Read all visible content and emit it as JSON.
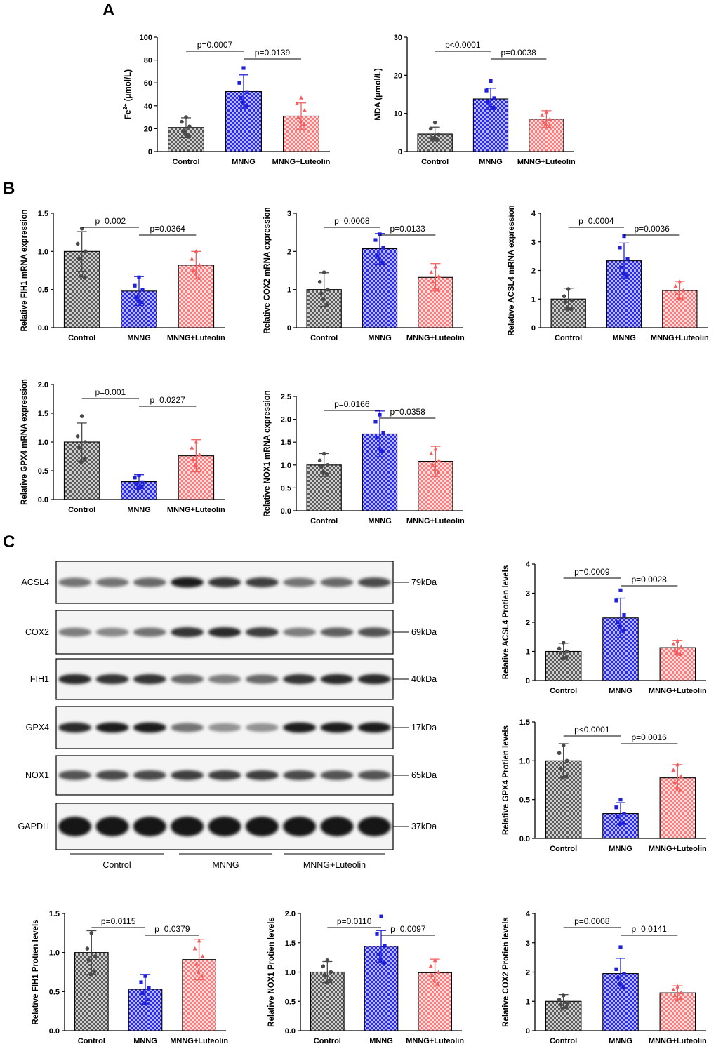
{
  "panels": {
    "a": "A",
    "b": "B",
    "c": "C"
  },
  "colors": {
    "control": "#4a4a4a",
    "mnng": "#2020d8",
    "luteolin": "#f06060",
    "control_fill": "#8a8a8a",
    "mnng_fill": "#3b3bff",
    "luteolin_fill": "#ff7a7a"
  },
  "chart_data": [
    {
      "id": "fe2",
      "type": "bar",
      "categories": [
        "Control",
        "MNNG",
        "MNNG+Luteolin"
      ],
      "values": [
        21,
        52.5,
        31
      ],
      "errors": [
        8.5,
        14.5,
        11.5
      ],
      "points": [
        [
          30,
          26,
          22,
          18,
          14,
          15
        ],
        [
          73,
          60,
          52,
          47,
          40,
          43
        ],
        [
          47,
          42,
          36,
          30,
          24,
          26
        ]
      ],
      "ylabel_main": "Fe",
      "ylabel_sup": "2+",
      "ylabel_unit": " (μmol/L)",
      "ylim": [
        0,
        100
      ],
      "yticks": [
        "0",
        "20",
        "40",
        "60",
        "80",
        "100"
      ],
      "comparisons": [
        {
          "from": 0,
          "to": 1,
          "label": "p=0.0007",
          "level": 0
        },
        {
          "from": 1,
          "to": 2,
          "label": "p=0.0139",
          "level": 1
        }
      ]
    },
    {
      "id": "mda",
      "type": "bar",
      "categories": [
        "Control",
        "MNNG",
        "MNNG+Luteolin"
      ],
      "values": [
        4.6,
        13.8,
        8.5
      ],
      "errors": [
        1.8,
        2.8,
        2.2
      ],
      "points": [
        [
          7.6,
          6,
          4.5,
          3.5,
          3.2,
          3.6
        ],
        [
          18.5,
          16,
          14,
          13,
          11.5,
          12
        ],
        [
          10.4,
          9.5,
          8.5,
          7.7,
          6.7,
          7.2
        ]
      ],
      "ylabel_main": "MDA (μmol/L)",
      "ylim": [
        0,
        30
      ],
      "yticks": [
        "0",
        "10",
        "20",
        "30"
      ],
      "comparisons": [
        {
          "from": 0,
          "to": 1,
          "label": "p<0.0001",
          "level": 0
        },
        {
          "from": 1,
          "to": 2,
          "label": "p=0.0038",
          "level": 1
        }
      ]
    },
    {
      "id": "fih1_mrna",
      "type": "bar",
      "categories": [
        "Control",
        "MNNG",
        "MNNG+Luteolin"
      ],
      "values": [
        1.0,
        0.48,
        0.82
      ],
      "errors": [
        0.26,
        0.19,
        0.18
      ],
      "points": [
        [
          1.3,
          1.1,
          1.0,
          0.9,
          0.65,
          0.68
        ],
        [
          0.66,
          0.55,
          0.5,
          0.4,
          0.33,
          0.35
        ],
        [
          1.0,
          0.9,
          0.82,
          0.75,
          0.65,
          0.7
        ]
      ],
      "ylabel_main": "Relative FIH1 mRNA expression",
      "ylim": [
        0,
        1.5
      ],
      "yticks": [
        "0.0",
        "0.5",
        "1.0",
        "1.5"
      ],
      "comparisons": [
        {
          "from": 0,
          "to": 1,
          "label": "p=0.002",
          "level": 0
        },
        {
          "from": 1,
          "to": 2,
          "label": "p=0.0364",
          "level": 1
        }
      ]
    },
    {
      "id": "cox2_mrna",
      "type": "bar",
      "categories": [
        "Control",
        "MNNG",
        "MNNG+Luteolin"
      ],
      "values": [
        1.0,
        2.07,
        1.32
      ],
      "errors": [
        0.44,
        0.4,
        0.36
      ],
      "points": [
        [
          1.45,
          1.2,
          1.0,
          0.9,
          0.6,
          0.75
        ],
        [
          2.45,
          2.3,
          2.1,
          1.9,
          1.7,
          1.8
        ],
        [
          1.6,
          1.45,
          1.35,
          1.2,
          1.0,
          1.05
        ]
      ],
      "ylabel_main": "Relative COX2 mRNA expression",
      "ylim": [
        0,
        3
      ],
      "yticks": [
        "0",
        "1",
        "2",
        "3"
      ],
      "comparisons": [
        {
          "from": 0,
          "to": 1,
          "label": "p=0.0008",
          "level": 0
        },
        {
          "from": 1,
          "to": 2,
          "label": "p=0.0133",
          "level": 1
        }
      ]
    },
    {
      "id": "acsl4_mrna",
      "type": "bar",
      "categories": [
        "Control",
        "MNNG",
        "MNNG+Luteolin"
      ],
      "values": [
        1.0,
        2.34,
        1.3
      ],
      "errors": [
        0.38,
        0.62,
        0.32
      ],
      "points": [
        [
          1.35,
          1.1,
          0.95,
          0.9,
          0.65,
          0.7
        ],
        [
          3.2,
          2.8,
          2.4,
          2.1,
          1.8,
          1.9
        ],
        [
          1.6,
          1.45,
          1.3,
          1.2,
          1.0,
          1.05
        ]
      ],
      "ylabel_main": "Relative ACSL4 mRNA expression",
      "ylim": [
        0,
        4
      ],
      "yticks": [
        "0",
        "1",
        "2",
        "3",
        "4"
      ],
      "comparisons": [
        {
          "from": 0,
          "to": 1,
          "label": "p=0.0004",
          "level": 0
        },
        {
          "from": 1,
          "to": 2,
          "label": "p=0.0036",
          "level": 1
        }
      ]
    },
    {
      "id": "gpx4_mrna",
      "type": "bar",
      "categories": [
        "Control",
        "MNNG",
        "MNNG+Luteolin"
      ],
      "values": [
        1.0,
        0.31,
        0.76
      ],
      "errors": [
        0.33,
        0.12,
        0.28
      ],
      "points": [
        [
          1.45,
          1.1,
          1.0,
          0.9,
          0.7,
          0.65
        ],
        [
          0.42,
          0.38,
          0.3,
          0.27,
          0.23,
          0.2
        ],
        [
          1.0,
          0.9,
          0.78,
          0.7,
          0.55,
          0.6
        ]
      ],
      "ylabel_main": "Relative GPX4 mRNA expression",
      "ylim": [
        0,
        2.0
      ],
      "yticks": [
        "0.0",
        "0.5",
        "1.0",
        "1.5",
        "2.0"
      ],
      "comparisons": [
        {
          "from": 0,
          "to": 1,
          "label": "p=0.001",
          "level": 0
        },
        {
          "from": 1,
          "to": 2,
          "label": "p=0.0227",
          "level": 1
        }
      ]
    },
    {
      "id": "nox1_mrna",
      "type": "bar",
      "categories": [
        "Control",
        "MNNG",
        "MNNG+Luteolin"
      ],
      "values": [
        1.0,
        1.68,
        1.08
      ],
      "errors": [
        0.25,
        0.5,
        0.33
      ],
      "points": [
        [
          1.25,
          1.1,
          1.0,
          0.95,
          0.8,
          0.85
        ],
        [
          2.1,
          1.95,
          1.7,
          1.6,
          1.3,
          1.35
        ],
        [
          1.35,
          1.25,
          1.1,
          1.0,
          0.85,
          0.9
        ]
      ],
      "ylabel_main": "Relative NOX1 mRNA expression",
      "ylim": [
        0,
        2.5
      ],
      "yticks": [
        "0.0",
        "0.5",
        "1.0",
        "1.5",
        "2.0",
        "2.5"
      ],
      "comparisons": [
        {
          "from": 0,
          "to": 1,
          "label": "p=0.0166",
          "level": 0
        },
        {
          "from": 1,
          "to": 2,
          "label": "p=0.0358",
          "level": 1
        }
      ]
    },
    {
      "id": "acsl4_protein",
      "type": "bar",
      "categories": [
        "Control",
        "MNNG",
        "MNNG+Luteolin"
      ],
      "values": [
        1.0,
        2.15,
        1.13
      ],
      "errors": [
        0.28,
        0.68,
        0.25
      ],
      "points": [
        [
          1.3,
          1.1,
          1.0,
          0.95,
          0.8,
          0.75
        ],
        [
          3.1,
          2.75,
          2.25,
          2.0,
          1.7,
          1.85
        ],
        [
          1.35,
          1.25,
          1.15,
          1.05,
          0.9,
          0.95
        ]
      ],
      "ylabel_main": "Relative ACSL4 Protien levels",
      "ylim": [
        0,
        4
      ],
      "yticks": [
        "0",
        "1",
        "2",
        "3",
        "4"
      ],
      "comparisons": [
        {
          "from": 0,
          "to": 1,
          "label": "p=0.0009",
          "level": 0
        },
        {
          "from": 1,
          "to": 2,
          "label": "p=0.0028",
          "level": 1
        }
      ]
    },
    {
      "id": "gpx4_protein",
      "type": "bar",
      "categories": [
        "Control",
        "MNNG",
        "MNNG+Luteolin"
      ],
      "values": [
        1.0,
        0.32,
        0.78
      ],
      "errors": [
        0.22,
        0.14,
        0.17
      ],
      "points": [
        [
          1.2,
          1.1,
          1.0,
          0.9,
          0.8,
          0.78
        ],
        [
          0.5,
          0.4,
          0.32,
          0.28,
          0.2,
          0.18
        ],
        [
          0.95,
          0.88,
          0.8,
          0.72,
          0.62,
          0.65
        ]
      ],
      "ylabel_main": "Relative GPX4 Protien levels",
      "ylim": [
        0,
        1.5
      ],
      "yticks": [
        "0.0",
        "0.5",
        "1.0",
        "1.5"
      ],
      "comparisons": [
        {
          "from": 0,
          "to": 1,
          "label": "p<0.0001",
          "level": 0
        },
        {
          "from": 1,
          "to": 2,
          "label": "p=0.0016",
          "level": 1
        }
      ]
    },
    {
      "id": "fih1_protein",
      "type": "bar",
      "categories": [
        "Control",
        "MNNG",
        "MNNG+Luteolin"
      ],
      "values": [
        1.0,
        0.53,
        0.91
      ],
      "errors": [
        0.28,
        0.19,
        0.26
      ],
      "points": [
        [
          1.25,
          1.05,
          0.95,
          0.9,
          0.75,
          0.72
        ],
        [
          0.7,
          0.62,
          0.55,
          0.48,
          0.4,
          0.35
        ],
        [
          1.15,
          1.05,
          0.95,
          0.85,
          0.7,
          0.75
        ]
      ],
      "ylabel_main": "Relative FIH1 Protien levels",
      "ylim": [
        0,
        1.5
      ],
      "yticks": [
        "0.0",
        "0.5",
        "1.0",
        "1.5"
      ],
      "comparisons": [
        {
          "from": 0,
          "to": 1,
          "label": "p=0.0115",
          "level": 0
        },
        {
          "from": 1,
          "to": 2,
          "label": "p=0.0379",
          "level": 1
        }
      ]
    },
    {
      "id": "nox1_protein",
      "type": "bar",
      "categories": [
        "Control",
        "MNNG",
        "MNNG+Luteolin"
      ],
      "values": [
        1.0,
        1.44,
        0.99
      ],
      "errors": [
        0.18,
        0.27,
        0.23
      ],
      "points": [
        [
          1.2,
          1.1,
          1.0,
          0.95,
          0.85,
          0.82
        ],
        [
          1.95,
          1.65,
          1.45,
          1.3,
          1.15,
          1.2
        ],
        [
          1.2,
          1.1,
          1.0,
          0.95,
          0.8,
          0.85
        ]
      ],
      "ylabel_main": "Relative NOX1 Protien levels",
      "ylim": [
        0,
        2.0
      ],
      "yticks": [
        "0.0",
        "0.5",
        "1.0",
        "1.5",
        "2.0"
      ],
      "comparisons": [
        {
          "from": 0,
          "to": 1,
          "label": "p=0.0110",
          "level": 0
        },
        {
          "from": 1,
          "to": 2,
          "label": "p=0.0097",
          "level": 1
        }
      ]
    },
    {
      "id": "cox2_protein",
      "type": "bar",
      "categories": [
        "Control",
        "MNNG",
        "MNNG+Luteolin"
      ],
      "values": [
        1.0,
        1.95,
        1.29
      ],
      "errors": [
        0.23,
        0.52,
        0.24
      ],
      "points": [
        [
          1.2,
          1.05,
          0.95,
          0.9,
          0.8,
          0.75
        ],
        [
          2.85,
          2.1,
          1.95,
          1.8,
          1.5,
          1.6
        ],
        [
          1.5,
          1.4,
          1.3,
          1.2,
          1.1,
          1.05
        ]
      ],
      "ylabel_main": "Relative COX2 Protien levels",
      "ylim": [
        0,
        4
      ],
      "yticks": [
        "0",
        "1",
        "2",
        "3",
        "4"
      ],
      "comparisons": [
        {
          "from": 0,
          "to": 1,
          "label": "p=0.0008",
          "level": 0
        },
        {
          "from": 1,
          "to": 2,
          "label": "p=0.0141",
          "level": 1
        }
      ]
    }
  ],
  "blot": {
    "rows": [
      {
        "label": "ACSL4",
        "kda": "79kDa",
        "intensity": [
          0.55,
          0.55,
          0.6,
          0.95,
          0.85,
          0.8,
          0.55,
          0.6,
          0.75
        ]
      },
      {
        "label": "COX2",
        "kda": "69kDa",
        "intensity": [
          0.5,
          0.45,
          0.55,
          0.85,
          0.9,
          0.8,
          0.5,
          0.65,
          0.7
        ]
      },
      {
        "label": "FIH1",
        "kda": "40kDa",
        "intensity": [
          0.9,
          0.85,
          0.85,
          0.6,
          0.5,
          0.6,
          0.85,
          0.9,
          0.9
        ]
      },
      {
        "label": "GPX4",
        "kda": "17kDa",
        "intensity": [
          0.9,
          0.95,
          0.95,
          0.55,
          0.4,
          0.4,
          0.95,
          0.95,
          0.95
        ]
      },
      {
        "label": "NOX1",
        "kda": "65kDa",
        "intensity": [
          0.7,
          0.75,
          0.75,
          0.8,
          0.8,
          0.8,
          0.75,
          0.7,
          0.7
        ]
      },
      {
        "label": "GAPDH",
        "kda": "37kDa",
        "intensity": [
          1.0,
          1.0,
          1.0,
          1.0,
          1.0,
          1.0,
          1.0,
          1.0,
          1.0
        ]
      }
    ],
    "groups": [
      "Control",
      "MNNG",
      "MNNG+Luteolin"
    ]
  }
}
